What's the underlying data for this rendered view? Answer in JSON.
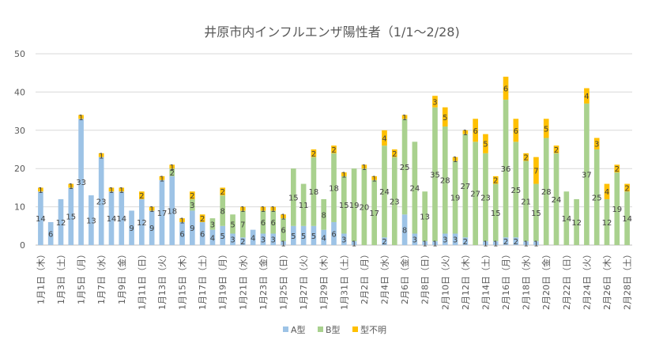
{
  "chart_data": {
    "type": "stacked-bar",
    "title": "井原市内インフルエンザ陽性者（1/1～2/28)",
    "ylim": [
      0,
      50
    ],
    "yticks": [
      0,
      10,
      20,
      30,
      40,
      50
    ],
    "grid": true,
    "legend_position": "bottom",
    "colors": {
      "A": "#9dc3e6",
      "B": "#a9d18e",
      "U": "#ffc000"
    },
    "categories": [
      "1月1日",
      "1月2日",
      "1月3日",
      "1月4日",
      "1月5日",
      "1月6日",
      "1月7日",
      "1月8日",
      "1月9日",
      "1月10日",
      "1月11日",
      "1月12日",
      "1月13日",
      "1月14日",
      "1月15日",
      "1月16日",
      "1月17日",
      "1月18日",
      "1月19日",
      "1月20日",
      "1月21日",
      "1月22日",
      "1月23日",
      "1月24日",
      "1月25日",
      "1月26日",
      "1月27日",
      "1月28日",
      "1月29日",
      "1月30日",
      "1月31日",
      "2月1日",
      "2月2日",
      "2月3日",
      "2月4日",
      "2月5日",
      "2月6日",
      "2月7日",
      "2月8日",
      "2月9日",
      "2月10日",
      "2月11日",
      "2月12日",
      "2月13日",
      "2月14日",
      "2月15日",
      "2月16日",
      "2月17日",
      "2月18日",
      "2月19日",
      "2月20日",
      "2月21日",
      "2月22日",
      "2月23日",
      "2月24日",
      "2月25日",
      "2月26日",
      "2月27日",
      "2月28日"
    ],
    "weekdays": [
      "木",
      "金",
      "土",
      "日",
      "月",
      "火",
      "水",
      "木",
      "金",
      "土",
      "日",
      "月",
      "火",
      "水",
      "木",
      "金",
      "土",
      "日",
      "月",
      "火",
      "水",
      "木",
      "金",
      "土",
      "日",
      "月",
      "火",
      "水",
      "木",
      "金",
      "土",
      "日",
      "月",
      "火",
      "水",
      "木",
      "金",
      "土",
      "日",
      "月",
      "火",
      "水",
      "木",
      "金",
      "土",
      "日",
      "月",
      "火",
      "水",
      "木",
      "金",
      "土",
      "日",
      "月",
      "火",
      "水",
      "木",
      "金",
      "土"
    ],
    "series": [
      {
        "key": "A",
        "name": "A型",
        "values": [
          14,
          6,
          12,
          15,
          33,
          13,
          23,
          14,
          14,
          9,
          12,
          9,
          17,
          18,
          6,
          9,
          6,
          4,
          5,
          3,
          2,
          4,
          3,
          3,
          1,
          5,
          5,
          5,
          4,
          6,
          3,
          1,
          0,
          0,
          2,
          0,
          8,
          3,
          1,
          1,
          3,
          3,
          2,
          0,
          1,
          1,
          2,
          2,
          1,
          1,
          0,
          0,
          0,
          0,
          0,
          0,
          0,
          0,
          0
        ]
      },
      {
        "key": "B",
        "name": "B型",
        "values": [
          0,
          0,
          0,
          0,
          0,
          0,
          0,
          0,
          0,
          0,
          0,
          0,
          0,
          2,
          0,
          3,
          0,
          3,
          8,
          5,
          7,
          0,
          6,
          6,
          6,
          15,
          11,
          18,
          8,
          18,
          15,
          19,
          20,
          17,
          24,
          23,
          25,
          24,
          13,
          35,
          28,
          19,
          27,
          27,
          23,
          15,
          36,
          25,
          21,
          15,
          28,
          24,
          14,
          12,
          37,
          25,
          12,
          19,
          14
        ]
      },
      {
        "key": "U",
        "name": "型不明",
        "values": [
          1,
          0,
          0,
          1,
          1,
          0,
          1,
          1,
          1,
          0,
          2,
          1,
          1,
          1,
          1,
          2,
          2,
          0,
          2,
          0,
          1,
          0,
          1,
          1,
          1,
          0,
          0,
          2,
          0,
          2,
          1,
          0,
          1,
          1,
          4,
          2,
          1,
          0,
          0,
          3,
          5,
          1,
          1,
          6,
          5,
          2,
          6,
          6,
          2,
          7,
          5,
          2,
          0,
          0,
          4,
          3,
          4,
          2,
          2
        ]
      }
    ]
  }
}
